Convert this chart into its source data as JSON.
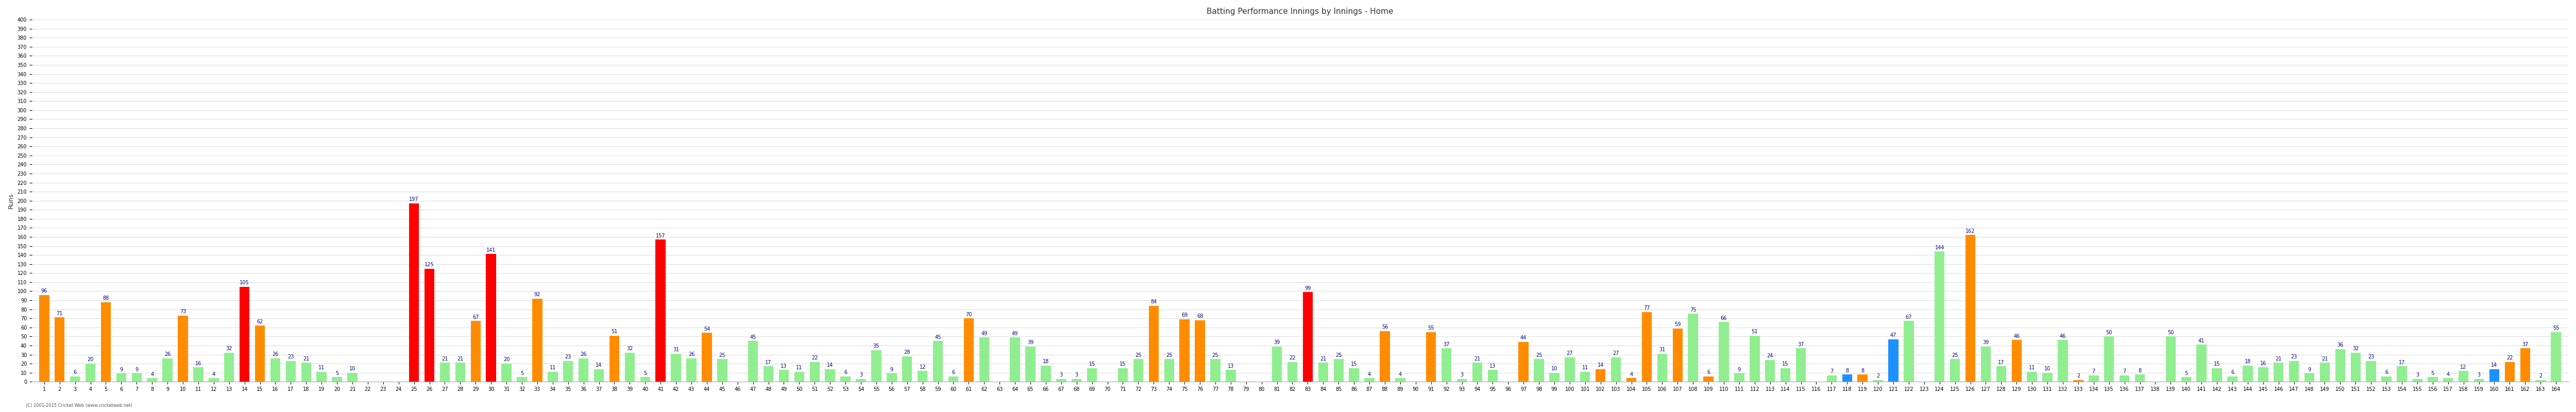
{
  "title": "Batting Performance Innings by Innings - Home",
  "ylabel": "Runs",
  "xlabel": "",
  "ylim": [
    0,
    400
  ],
  "yticks": [
    0,
    10,
    20,
    30,
    40,
    50,
    60,
    70,
    80,
    90,
    100,
    110,
    120,
    130,
    140,
    150,
    160,
    170,
    180,
    190,
    200,
    210,
    220,
    230,
    240,
    250,
    260,
    270,
    280,
    290,
    300,
    310,
    320,
    330,
    340,
    350,
    360,
    370,
    380,
    390,
    400
  ],
  "background_color": "#ffffff",
  "grid_color": "#cccccc",
  "bar_label_color": "#00008B",
  "bar_label_fontsize": 7,
  "ylabel_fontsize": 9,
  "tick_fontsize": 7,
  "title_fontsize": 11,
  "footer": "(C) 2001-2015 Cricket Web (www.cricketweb.net)",
  "innings": [
    1,
    2,
    3,
    4,
    5,
    6,
    7,
    8,
    9,
    10,
    11,
    12,
    13,
    14,
    15,
    16,
    17,
    18,
    19,
    20,
    21,
    22,
    23,
    24,
    25,
    26,
    27,
    28,
    29,
    30,
    31,
    32,
    33,
    34,
    35,
    36,
    37,
    38,
    39,
    40,
    41,
    42,
    43,
    44,
    45,
    46,
    47,
    48,
    49,
    50,
    51,
    52,
    53,
    54,
    55,
    56,
    57,
    58,
    59,
    60,
    61,
    62,
    63,
    64,
    65,
    66,
    67,
    68,
    69,
    70,
    71,
    72,
    73,
    74,
    75,
    76,
    77,
    78,
    79,
    80,
    81,
    82,
    83,
    84,
    85,
    86,
    87,
    88,
    89,
    90,
    91,
    92,
    93,
    94,
    95,
    96,
    97,
    98,
    99,
    100,
    101,
    102,
    103,
    104,
    105,
    106,
    107,
    108,
    109,
    110,
    111,
    112,
    113,
    114,
    115,
    116,
    117,
    118,
    119,
    120,
    121,
    122,
    123,
    124,
    125,
    126,
    127,
    128,
    129,
    130,
    131,
    132,
    133,
    134,
    135,
    136,
    137,
    138,
    139,
    140,
    141,
    142,
    143,
    144,
    145,
    146,
    147,
    148,
    149,
    150,
    151,
    152,
    153,
    154,
    155,
    156,
    157,
    158,
    159,
    160,
    161,
    162,
    163,
    164
  ],
  "values": [
    96,
    71,
    6,
    20,
    88,
    9,
    9,
    4,
    26,
    73,
    16,
    4,
    32,
    105,
    62,
    26,
    23,
    21,
    11,
    5,
    10,
    0,
    0,
    0,
    197,
    125,
    21,
    21,
    67,
    141,
    20,
    5,
    92,
    11,
    23,
    26,
    14,
    51,
    32,
    5,
    157,
    31,
    26,
    54,
    25,
    0,
    45,
    17,
    13,
    11,
    22,
    14,
    6,
    3,
    35,
    9,
    28,
    12,
    45,
    6,
    70,
    49,
    0,
    49,
    39,
    18,
    3,
    3,
    15,
    0,
    15,
    25,
    84,
    25,
    69,
    68,
    25,
    13,
    0,
    0,
    39,
    22,
    99,
    21,
    25,
    15,
    4,
    56,
    4,
    0,
    55,
    37,
    3,
    21,
    13,
    0,
    44,
    25,
    10,
    27,
    11,
    14,
    27,
    4,
    77,
    31,
    59,
    75,
    6,
    66,
    9,
    51,
    24,
    15,
    37,
    0,
    7,
    8,
    8,
    2,
    47,
    67,
    0,
    144,
    25,
    162,
    39,
    17,
    46,
    11,
    10,
    46,
    2,
    7,
    50,
    7,
    8,
    0,
    50,
    5,
    41,
    15,
    6,
    18,
    16,
    21,
    23,
    9,
    21,
    36,
    32,
    23,
    6,
    17,
    3,
    5,
    4,
    12,
    3,
    14,
    22,
    37,
    2,
    55
  ],
  "colors": [
    "#FF8C00",
    "#FF8C00",
    "#90EE90",
    "#90EE90",
    "#FF8C00",
    "#90EE90",
    "#90EE90",
    "#90EE90",
    "#90EE90",
    "#FF8C00",
    "#90EE90",
    "#90EE90",
    "#90EE90",
    "#FF0000",
    "#FF8C00",
    "#90EE90",
    "#90EE90",
    "#90EE90",
    "#90EE90",
    "#90EE90",
    "#90EE90",
    "#90EE90",
    "#90EE90",
    "#90EE90",
    "#FF0000",
    "#FF0000",
    "#90EE90",
    "#90EE90",
    "#FF8C00",
    "#FF0000",
    "#90EE90",
    "#90EE90",
    "#FF8C00",
    "#90EE90",
    "#90EE90",
    "#90EE90",
    "#90EE90",
    "#FF8C00",
    "#90EE90",
    "#90EE90",
    "#FF0000",
    "#90EE90",
    "#90EE90",
    "#FF8C00",
    "#90EE90",
    "#90EE90",
    "#90EE90",
    "#90EE90",
    "#90EE90",
    "#90EE90",
    "#90EE90",
    "#90EE90",
    "#90EE90",
    "#90EE90",
    "#90EE90",
    "#90EE90",
    "#90EE90",
    "#90EE90",
    "#90EE90",
    "#90EE90",
    "#FF8C00",
    "#90EE90",
    "#90EE90",
    "#90EE90",
    "#90EE90",
    "#90EE90",
    "#90EE90",
    "#90EE90",
    "#90EE90",
    "#90EE90",
    "#90EE90",
    "#90EE90",
    "#FF8C00",
    "#90EE90",
    "#FF8C00",
    "#FF8C00",
    "#90EE90",
    "#90EE90",
    "#90EE90",
    "#90EE90",
    "#90EE90",
    "#90EE90",
    "#FF0000",
    "#90EE90",
    "#90EE90",
    "#90EE90",
    "#90EE90",
    "#FF8C00",
    "#90EE90",
    "#90EE90",
    "#FF8C00",
    "#90EE90",
    "#90EE90",
    "#90EE90",
    "#90EE90",
    "#90EE90",
    "#FF8C00",
    "#90EE90",
    "#90EE90",
    "#90EE90",
    "#90EE90",
    "#FF8C00",
    "#90EE90",
    "#FF8C00",
    "#FF8C00",
    "#90EE90",
    "#FF8C00",
    "#90EE90",
    "#FF8C00",
    "#90EE90",
    "#90EE90",
    "#90EE90",
    "#90EE90",
    "#90EE90",
    "#90EE90",
    "#90EE90",
    "#90EE90",
    "#1E90FF",
    "#FF8C00",
    "#90EE90",
    "#1E90FF",
    "#90EE90",
    "#FF8C00",
    "#90EE90",
    "#90EE90",
    "#FF8C00",
    "#90EE90",
    "#90EE90",
    "#FF8C00",
    "#90EE90",
    "#90EE90",
    "#90EE90",
    "#FF8C00",
    "#90EE90",
    "#90EE90",
    "#90EE90",
    "#90EE90",
    "#FF8C00",
    "#90EE90",
    "#90EE90",
    "#90EE90",
    "#90EE90",
    "#90EE90",
    "#90EE90",
    "#90EE90",
    "#90EE90",
    "#90EE90",
    "#90EE90",
    "#90EE90",
    "#90EE90",
    "#90EE90",
    "#90EE90",
    "#90EE90",
    "#90EE90",
    "#90EE90",
    "#90EE90",
    "#90EE90",
    "#90EE90",
    "#90EE90",
    "#1E90FF"
  ]
}
